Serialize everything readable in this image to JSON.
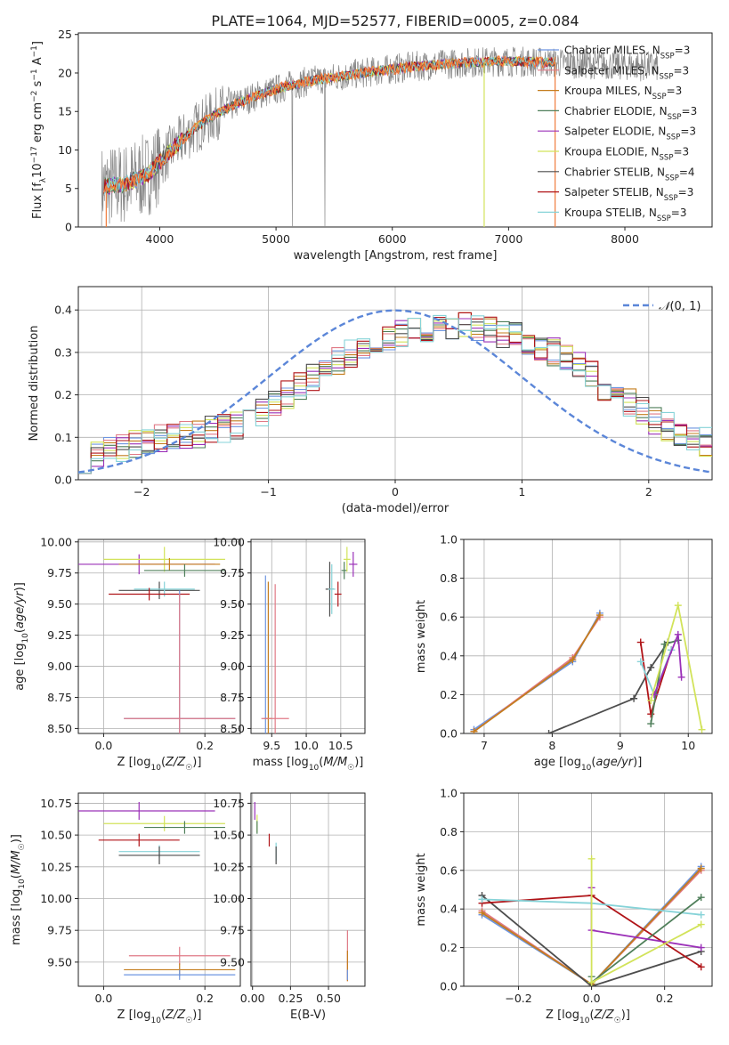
{
  "figure": {
    "title": "PLATE=1064, MJD=52577, FIBERID=0005, z=0.084"
  },
  "colors": {
    "Chabrier MILES": "#6d95e0",
    "Salpeter MILES": "#e07a86",
    "Kroupa MILES": "#c47d1e",
    "Chabrier ELODIE": "#4f7f5a",
    "Salpeter ELODIE": "#9b30b8",
    "Kroupa ELODIE": "#d2e35a",
    "Chabrier STELIB": "#4d4d4d",
    "Salpeter STELIB": "#b01418",
    "Kroupa STELIB": "#86d3d8",
    "data": "#888888",
    "orange_fit": "#f07c3c",
    "normal": "#5b86d8"
  },
  "chart_data": [
    {
      "type": "line",
      "title": "PLATE=1064, MJD=52577, FIBERID=0005, z=0.084",
      "xlabel": "wavelength [Angstrom, rest frame]",
      "ylabel": "Flux [f_λ 10^-17 erg cm^-2 s^-1 A^-1]",
      "xlim": [
        3300,
        8750
      ],
      "ylim": [
        0,
        25.2
      ],
      "xticks": [
        "4000",
        "5000",
        "6000",
        "7000",
        "8000"
      ],
      "yticks": [
        "0",
        "5",
        "10",
        "15",
        "20",
        "25"
      ],
      "legend_position": "right",
      "legend": [
        {
          "name": "Chabrier MILES",
          "nssp": "3"
        },
        {
          "name": "Salpeter MILES",
          "nssp": "3"
        },
        {
          "name": "Kroupa MILES",
          "nssp": "3"
        },
        {
          "name": "Chabrier ELODIE",
          "nssp": "3"
        },
        {
          "name": "Salpeter ELODIE",
          "nssp": "3"
        },
        {
          "name": "Kroupa ELODIE",
          "nssp": "3"
        },
        {
          "name": "Chabrier STELIB",
          "nssp": "4"
        },
        {
          "name": "Salpeter STELIB",
          "nssp": "3"
        },
        {
          "name": "Kroupa STELIB",
          "nssp": "3"
        }
      ],
      "continuum": {
        "x": [
          3500,
          3700,
          3900,
          4100,
          4300,
          4500,
          4700,
          4900,
          5100,
          5300,
          5500,
          5700,
          5900,
          6100,
          6300,
          6500,
          6700,
          6900,
          7100,
          7300
        ],
        "y": [
          5.2,
          5.6,
          6.8,
          10.0,
          12.8,
          14.8,
          16.3,
          17.4,
          18.3,
          19.0,
          19.4,
          19.9,
          20.3,
          20.7,
          21.0,
          21.2,
          21.4,
          21.5,
          21.5,
          21.4
        ]
      },
      "data_extends_to": 8280
    },
    {
      "type": "step-histogram",
      "xlabel": "(data-model)/error",
      "ylabel": "Normed distribution",
      "xlim": [
        -2.5,
        2.5
      ],
      "ylim": [
        0,
        0.455
      ],
      "xticks": [
        "−2",
        "−1",
        "0",
        "1",
        "2"
      ],
      "yticks": [
        "0.0",
        "0.1",
        "0.2",
        "0.3",
        "0.4"
      ],
      "legend_label": "N(0,1)",
      "legend_position": "top-right",
      "reference_curve": "normal(0,1)",
      "bin_width": 0.1,
      "bin_start": -2.5,
      "envelope": [
        0.05,
        0.055,
        0.065,
        0.075,
        0.085,
        0.09,
        0.095,
        0.1,
        0.105,
        0.11,
        0.115,
        0.12,
        0.13,
        0.145,
        0.16,
        0.18,
        0.2,
        0.22,
        0.24,
        0.26,
        0.28,
        0.3,
        0.31,
        0.32,
        0.33,
        0.34,
        0.35,
        0.355,
        0.36,
        0.362,
        0.365,
        0.36,
        0.355,
        0.345,
        0.335,
        0.325,
        0.31,
        0.3,
        0.285,
        0.265,
        0.245,
        0.22,
        0.2,
        0.18,
        0.16,
        0.14,
        0.125,
        0.11,
        0.1,
        0.09
      ]
    },
    {
      "type": "errorbar",
      "xlabel": "Z [log10(Z/Z☉)]",
      "ylabel": "age  [log10(age/yr)]",
      "xlim": [
        -0.05,
        0.27
      ],
      "ylim": [
        8.46,
        10.02
      ],
      "xticks": [
        "0.0",
        "0.2"
      ],
      "xtick_values": [
        0,
        0.2
      ],
      "yticks": [
        "8.50",
        "8.75",
        "9.00",
        "9.25",
        "9.50",
        "9.75",
        "10.00"
      ],
      "ytick_values": [
        8.5,
        8.75,
        9.0,
        9.25,
        9.5,
        9.75,
        10.0
      ],
      "points": [
        {
          "series": "Salpeter ELODIE",
          "x": 0.07,
          "xerr": 0.15,
          "y": 9.82,
          "yerr": 0.08
        },
        {
          "series": "Kroupa ELODIE",
          "x": 0.12,
          "xerr": 0.12,
          "y": 9.86,
          "yerr": 0.1
        },
        {
          "series": "Kroupa MILES",
          "x": 0.13,
          "xerr": 0.1,
          "y": 9.82,
          "yerr": 0.05
        },
        {
          "series": "Chabrier ELODIE",
          "x": 0.16,
          "xerr": 0.08,
          "y": 9.77,
          "yerr": 0.05
        },
        {
          "series": "Chabrier STELIB",
          "x": 0.11,
          "xerr": 0.08,
          "y": 9.61,
          "yerr": 0.07
        },
        {
          "series": "Kroupa STELIB",
          "x": 0.12,
          "xerr": 0.06,
          "y": 9.62,
          "yerr": 0.06
        },
        {
          "series": "Salpeter STELIB",
          "x": 0.09,
          "xerr": 0.08,
          "y": 9.58,
          "yerr": 0.05
        },
        {
          "series": "Chabrier MILES",
          "x": 0.15,
          "xerr": 0.11,
          "y": 8.58,
          "yerr": 1.03
        },
        {
          "series": "Salpeter MILES",
          "x": 0.15,
          "xerr": 0.11,
          "y": 8.58,
          "yerr": 1.0
        }
      ]
    },
    {
      "type": "errorbar",
      "xlabel": "mass [log10(M/M☉)]",
      "ylabel": "",
      "xlim": [
        9.2,
        10.85
      ],
      "ylim": [
        8.46,
        10.02
      ],
      "xticks": [
        "9.5",
        "10.0",
        "10.5"
      ],
      "xtick_values": [
        9.5,
        10.0,
        10.5
      ],
      "yticks": [
        "8.50",
        "8.75",
        "9.00",
        "9.25",
        "9.50",
        "9.75",
        "10.00"
      ],
      "ytick_values": [
        8.5,
        8.75,
        9.0,
        9.25,
        9.5,
        9.75,
        10.0
      ],
      "points": [
        {
          "series": "Chabrier MILES",
          "x": 9.41,
          "xerr": 0.03,
          "y": 8.58,
          "yerr": 1.15
        },
        {
          "series": "Kroupa MILES",
          "x": 9.45,
          "xerr": 0.05,
          "y": 8.58,
          "yerr": 1.1
        },
        {
          "series": "Salpeter MILES",
          "x": 9.55,
          "xerr": 0.2,
          "y": 8.58,
          "yerr": 1.08
        },
        {
          "series": "Chabrier STELIB",
          "x": 10.34,
          "xerr": 0.06,
          "y": 9.62,
          "yerr": 0.22
        },
        {
          "series": "Kroupa STELIB",
          "x": 10.37,
          "xerr": 0.05,
          "y": 9.62,
          "yerr": 0.2
        },
        {
          "series": "Salpeter STELIB",
          "x": 10.46,
          "xerr": 0.05,
          "y": 9.58,
          "yerr": 0.1
        },
        {
          "series": "Chabrier ELODIE",
          "x": 10.55,
          "xerr": 0.04,
          "y": 9.77,
          "yerr": 0.07
        },
        {
          "series": "Kroupa ELODIE",
          "x": 10.59,
          "xerr": 0.05,
          "y": 9.86,
          "yerr": 0.1
        },
        {
          "series": "Salpeter ELODIE",
          "x": 10.68,
          "xerr": 0.06,
          "y": 9.82,
          "yerr": 0.1
        }
      ]
    },
    {
      "type": "line",
      "xlabel": "age  [log10(age/yr)]",
      "ylabel": "mass weight",
      "xlim": [
        6.7,
        10.35
      ],
      "ylim": [
        0,
        1.0
      ],
      "xticks": [
        "7",
        "8",
        "9",
        "10"
      ],
      "xtick_values": [
        7,
        8,
        9,
        10
      ],
      "yticks": [
        "0.0",
        "0.2",
        "0.4",
        "0.6",
        "0.8",
        "1.0"
      ],
      "ytick_values": [
        0,
        0.2,
        0.4,
        0.6,
        0.8,
        1.0
      ],
      "series": [
        {
          "name": "Chabrier MILES",
          "x": [
            6.85,
            8.3,
            8.7
          ],
          "y": [
            0.02,
            0.37,
            0.62
          ]
        },
        {
          "name": "Salpeter MILES",
          "x": [
            6.85,
            8.3,
            8.7
          ],
          "y": [
            0.01,
            0.39,
            0.6
          ]
        },
        {
          "name": "Kroupa MILES",
          "x": [
            6.85,
            8.3,
            8.7
          ],
          "y": [
            0.01,
            0.38,
            0.61
          ]
        },
        {
          "name": "Chabrier STELIB",
          "x": [
            7.95,
            9.2,
            9.45,
            9.7
          ],
          "y": [
            0.0,
            0.18,
            0.34,
            0.47
          ]
        },
        {
          "name": "Salpeter STELIB",
          "x": [
            9.3,
            9.45,
            9.75
          ],
          "y": [
            0.47,
            0.1,
            0.43
          ]
        },
        {
          "name": "Kroupa STELIB",
          "x": [
            9.3,
            9.5,
            9.75
          ],
          "y": [
            0.37,
            0.2,
            0.43
          ]
        },
        {
          "name": "Chabrier ELODIE",
          "x": [
            9.45,
            9.65,
            9.85
          ],
          "y": [
            0.05,
            0.46,
            0.48
          ]
        },
        {
          "name": "Salpeter ELODIE",
          "x": [
            9.5,
            9.85,
            9.9
          ],
          "y": [
            0.2,
            0.51,
            0.29
          ]
        },
        {
          "name": "Kroupa ELODIE",
          "x": [
            9.45,
            9.85,
            10.2
          ],
          "y": [
            0.17,
            0.66,
            0.02
          ]
        }
      ]
    },
    {
      "type": "errorbar",
      "xlabel": "Z [log10(Z/Z☉)]",
      "ylabel": "mass [log10(M/M☉)]",
      "xlim": [
        -0.05,
        0.27
      ],
      "ylim": [
        9.31,
        10.83
      ],
      "xticks": [
        "0.0",
        "0.2"
      ],
      "xtick_values": [
        0,
        0.2
      ],
      "yticks": [
        "9.50",
        "9.75",
        "10.00",
        "10.25",
        "10.50",
        "10.75"
      ],
      "ytick_values": [
        9.5,
        9.75,
        10.0,
        10.25,
        10.5,
        10.75
      ],
      "points": [
        {
          "series": "Salpeter ELODIE",
          "x": 0.07,
          "xerr": 0.15,
          "y": 10.69,
          "yerr": 0.07
        },
        {
          "series": "Kroupa ELODIE",
          "x": 0.12,
          "xerr": 0.12,
          "y": 10.59,
          "yerr": 0.06
        },
        {
          "series": "Chabrier ELODIE",
          "x": 0.16,
          "xerr": 0.08,
          "y": 10.56,
          "yerr": 0.05
        },
        {
          "series": "Salpeter STELIB",
          "x": 0.07,
          "xerr": 0.08,
          "y": 10.46,
          "yerr": 0.05
        },
        {
          "series": "Kroupa STELIB",
          "x": 0.11,
          "xerr": 0.08,
          "y": 10.37,
          "yerr": 0.05
        },
        {
          "series": "Chabrier STELIB",
          "x": 0.11,
          "xerr": 0.08,
          "y": 10.34,
          "yerr": 0.07
        },
        {
          "series": "Salpeter MILES",
          "x": 0.15,
          "xerr": 0.1,
          "y": 9.55,
          "yerr": 0.07
        },
        {
          "series": "Kroupa MILES",
          "x": 0.15,
          "xerr": 0.11,
          "y": 9.44,
          "yerr": 0.05
        },
        {
          "series": "Chabrier MILES",
          "x": 0.15,
          "xerr": 0.11,
          "y": 9.4,
          "yerr": 0.04
        }
      ]
    },
    {
      "type": "errorbar",
      "xlabel": "E(B-V)",
      "ylabel": "",
      "xlim": [
        -0.01,
        0.74
      ],
      "ylim": [
        9.31,
        10.83
      ],
      "xticks": [
        "0.00",
        "0.25",
        "0.50"
      ],
      "xtick_values": [
        0,
        0.25,
        0.5
      ],
      "yticks": [
        "9.50",
        "9.75",
        "10.00",
        "10.25",
        "10.50",
        "10.75"
      ],
      "ytick_values": [
        9.5,
        9.75,
        10.0,
        10.25,
        10.5,
        10.75
      ],
      "points": [
        {
          "series": "Salpeter ELODIE",
          "x": 0.015,
          "xerr": 0.0,
          "y": 10.69,
          "yerr": 0.07
        },
        {
          "series": "Kroupa ELODIE",
          "x": 0.03,
          "xerr": 0.0,
          "y": 10.59,
          "yerr": 0.07
        },
        {
          "series": "Chabrier ELODIE",
          "x": 0.03,
          "xerr": 0.0,
          "y": 10.56,
          "yerr": 0.05
        },
        {
          "series": "Salpeter STELIB",
          "x": 0.11,
          "xerr": 0.0,
          "y": 10.46,
          "yerr": 0.05
        },
        {
          "series": "Kroupa STELIB",
          "x": 0.155,
          "xerr": 0.0,
          "y": 10.37,
          "yerr": 0.07
        },
        {
          "series": "Chabrier STELIB",
          "x": 0.155,
          "xerr": 0.0,
          "y": 10.34,
          "yerr": 0.07
        },
        {
          "series": "Salpeter MILES",
          "x": 0.625,
          "xerr": 0.0,
          "y": 9.55,
          "yerr": 0.2
        },
        {
          "series": "Kroupa MILES",
          "x": 0.625,
          "xerr": 0.0,
          "y": 9.47,
          "yerr": 0.12
        },
        {
          "series": "Chabrier MILES",
          "x": 0.625,
          "xerr": 0.0,
          "y": 9.4,
          "yerr": 0.04
        }
      ]
    },
    {
      "type": "line",
      "xlabel": "Z [log10(Z/Z☉)]",
      "ylabel": "mass weight",
      "xlim": [
        -0.35,
        0.33
      ],
      "ylim": [
        0,
        1.0
      ],
      "xticks": [
        "−0.2",
        "0.0",
        "0.2"
      ],
      "xtick_values": [
        -0.2,
        0.0,
        0.2
      ],
      "yticks": [
        "0.0",
        "0.2",
        "0.4",
        "0.6",
        "0.8",
        "1.0"
      ],
      "ytick_values": [
        0,
        0.2,
        0.4,
        0.6,
        0.8,
        1.0
      ],
      "series": [
        {
          "name": "Chabrier MILES",
          "x": [
            -0.3,
            0.0,
            0.3
          ],
          "y": [
            0.37,
            0.01,
            0.62
          ]
        },
        {
          "name": "Salpeter MILES",
          "x": [
            -0.3,
            0.0,
            0.3
          ],
          "y": [
            0.39,
            0.01,
            0.6
          ]
        },
        {
          "name": "Kroupa MILES",
          "x": [
            -0.3,
            0.0,
            0.3
          ],
          "y": [
            0.38,
            0.01,
            0.61
          ]
        },
        {
          "name": "Chabrier STELIB",
          "x": [
            -0.3,
            0.0,
            0.3
          ],
          "y": [
            0.47,
            0.0,
            0.18
          ]
        },
        {
          "name": "Salpeter STELIB",
          "x": [
            -0.3,
            0.0,
            0.3
          ],
          "y": [
            0.43,
            0.47,
            0.1
          ]
        },
        {
          "name": "Kroupa STELIB",
          "x": [
            -0.3,
            0.0,
            0.3
          ],
          "y": [
            0.45,
            0.43,
            0.37
          ]
        },
        {
          "name": "Chabrier ELODIE",
          "x": [
            0.0,
            0.0,
            0.3
          ],
          "y": [
            0.05,
            0.02,
            0.46
          ]
        },
        {
          "name": "Salpeter ELODIE",
          "x": [
            0.0,
            0.0,
            0.3
          ],
          "y": [
            0.51,
            0.29,
            0.2
          ]
        },
        {
          "name": "Kroupa ELODIE",
          "x": [
            0.0,
            0.0,
            0.3
          ],
          "y": [
            0.66,
            0.02,
            0.32
          ]
        }
      ]
    }
  ]
}
